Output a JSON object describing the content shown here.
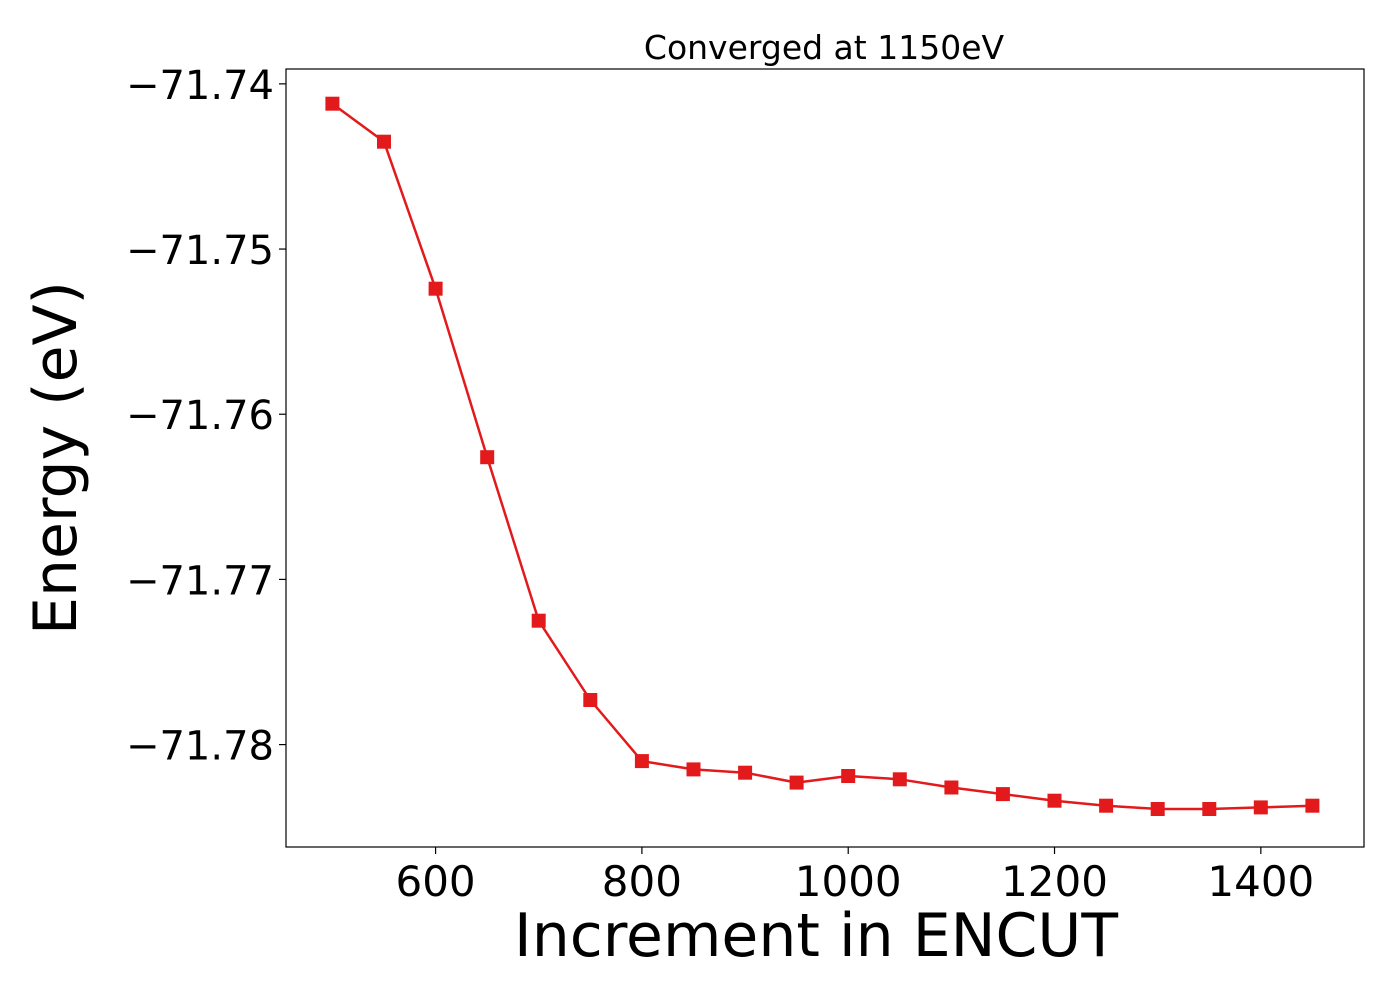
{
  "chart_data": {
    "type": "line",
    "title": "Converged at 1150eV",
    "xlabel": "Increment in ENCUT",
    "ylabel": "Energy (eV)",
    "xlim": [
      455,
      1500
    ],
    "ylim": [
      -71.7862,
      -71.7391
    ],
    "x_ticks": [
      600,
      800,
      1000,
      1200,
      1400
    ],
    "x_tick_labels": [
      "600",
      "800",
      "1000",
      "1200",
      "1400"
    ],
    "y_ticks": [
      -71.74,
      -71.75,
      -71.76,
      -71.77,
      -71.78
    ],
    "y_tick_labels": [
      "−71.74",
      "−71.75",
      "−71.76",
      "−71.77",
      "−71.78"
    ],
    "grid": false,
    "marker": "square",
    "series": [
      {
        "color": "#e31a1c",
        "x": [
          500,
          550,
          600,
          650,
          700,
          750,
          800,
          850,
          900,
          950,
          1000,
          1050,
          1100,
          1150,
          1200,
          1250,
          1300,
          1350,
          1400,
          1450
        ],
        "y": [
          -71.7412,
          -71.7435,
          -71.7524,
          -71.7626,
          -71.7725,
          -71.7773,
          -71.781,
          -71.7815,
          -71.7817,
          -71.7823,
          -71.7819,
          -71.7821,
          -71.7826,
          -71.783,
          -71.7834,
          -71.7837,
          -71.7839,
          -71.7839,
          -71.7838,
          -71.7837
        ]
      }
    ]
  }
}
